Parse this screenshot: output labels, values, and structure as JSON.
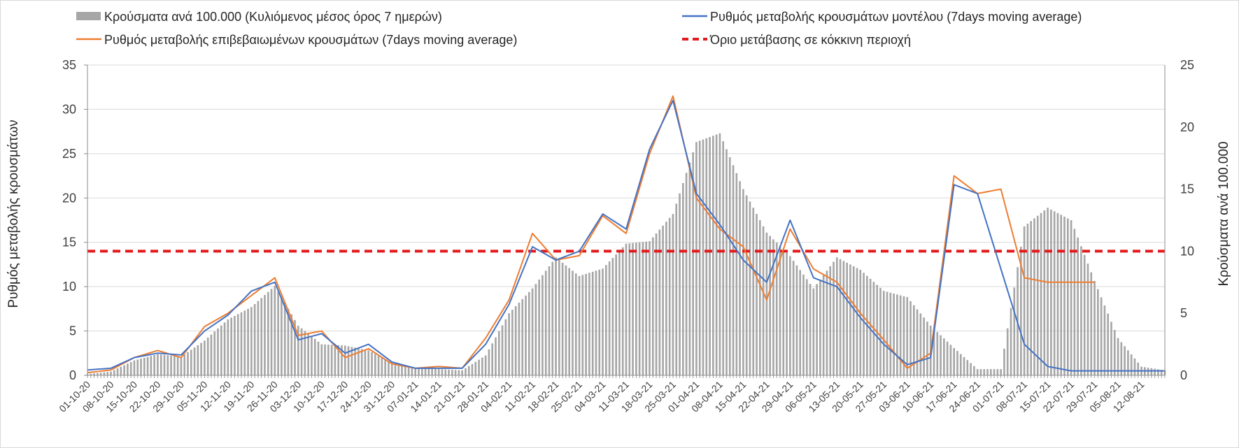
{
  "chart_data": {
    "type": "bar+line",
    "legend": {
      "bars_label": "Κρούσματα ανά 100.000 (Κυλιόμενος μέσος όρος 7 ημερών)",
      "model_label": "Ρυθμός μεταβολής κρουσμάτων μοντέλου (7days moving average)",
      "confirmed_label": "Ρυθμός μεταβολής επιβεβαιωμένων κρουσμάτων (7days moving average)",
      "threshold_label": "Όριο μετάβασης σε κόκκινη περιοχή"
    },
    "ylabel_left": "Ρυθμός μεταβολής κρουσμάτων",
    "ylabel_right": "Κρούσματα ανά 100.000",
    "ylim_left": [
      0,
      35
    ],
    "yticks_left": [
      "0",
      "5",
      "10",
      "15",
      "20",
      "25",
      "30",
      "35"
    ],
    "ylim_right": [
      0,
      25
    ],
    "yticks_right": [
      "0",
      "5",
      "10",
      "15",
      "20",
      "25"
    ],
    "x_start_date": "01-10-20",
    "day_count": 323,
    "x_tick_labels": [
      "01-10-20",
      "08-10-20",
      "15-10-20",
      "22-10-20",
      "29-10-20",
      "05-11-20",
      "12-11-20",
      "19-11-20",
      "26-11-20",
      "03-12-20",
      "10-12-20",
      "17-12-20",
      "24-12-20",
      "31-12-20",
      "07-01-21",
      "14-01-21",
      "21-01-21",
      "28-01-21",
      "04-02-21",
      "11-02-21",
      "18-02-21",
      "25-02-21",
      "04-03-21",
      "11-03-21",
      "18-03-21",
      "25-03-21",
      "01-04-21",
      "08-04-21",
      "15-04-21",
      "22-04-21",
      "29-04-21",
      "06-05-21",
      "13-05-21",
      "20-05-21",
      "27-05-21",
      "03-06-21",
      "10-06-21",
      "17-06-21",
      "24-06-21",
      "01-07-21",
      "08-07-21",
      "15-07-21",
      "22-07-21",
      "29-07-21",
      "05-08-21",
      "12-08-21"
    ],
    "threshold_left_value": 14,
    "grid": true,
    "legend_position": "top",
    "bars_series": {
      "name": "Κρούσματα ανά 100.000 (Κυλιόμενος μέσος όρος 7 ημερών)",
      "color": "#a6a6a6",
      "day_index": [
        0,
        7,
        14,
        21,
        28,
        35,
        42,
        49,
        56,
        63,
        70,
        77,
        84,
        91,
        98,
        105,
        112,
        119,
        126,
        133,
        140,
        147,
        154,
        161,
        168,
        175,
        182,
        189,
        196,
        203,
        210,
        217,
        224,
        231,
        238,
        245,
        252,
        259,
        266,
        273,
        280,
        287,
        294,
        301,
        308,
        315,
        322
      ],
      "values": [
        0.1,
        0.3,
        1.2,
        1.7,
        1.5,
        2.8,
        4.5,
        5.5,
        7.2,
        4.0,
        2.5,
        2.4,
        2.0,
        1.0,
        0.6,
        0.5,
        0.4,
        1.6,
        5.0,
        7.0,
        9.5,
        8.0,
        8.6,
        10.6,
        10.8,
        13.0,
        18.8,
        19.5,
        15.0,
        11.5,
        9.6,
        7.0,
        9.5,
        8.5,
        6.8,
        6.3,
        4.0,
        2.2,
        0.5,
        0.5,
        12.0,
        13.5,
        12.5,
        7.6,
        3.0,
        0.7,
        0.4
      ]
    },
    "model_series": {
      "name": "Ρυθμός μεταβολής κρουσμάτων μοντέλου (7days moving average)",
      "color": "#4472c4",
      "day_index": [
        0,
        7,
        14,
        21,
        28,
        35,
        42,
        49,
        56,
        63,
        70,
        77,
        84,
        91,
        98,
        105,
        112,
        119,
        126,
        133,
        140,
        147,
        154,
        161,
        168,
        175,
        182,
        189,
        196,
        203,
        210,
        217,
        224,
        231,
        238,
        245,
        252,
        259,
        266,
        273,
        280,
        287,
        294,
        301,
        308,
        315,
        322
      ],
      "values": [
        0.6,
        0.8,
        2.0,
        2.5,
        2.3,
        5.0,
        6.8,
        9.5,
        10.5,
        4.0,
        4.7,
        2.5,
        3.5,
        1.5,
        0.8,
        0.8,
        0.8,
        3.5,
        8.0,
        14.5,
        13.0,
        14.0,
        18.2,
        16.5,
        25.5,
        31.0,
        20.5,
        17.0,
        13.0,
        10.5,
        17.5,
        11.0,
        10.0,
        6.5,
        3.5,
        1.2,
        2.0,
        21.5,
        20.5,
        12.0,
        3.5,
        1.0,
        0.5,
        0.5,
        0.5,
        0.5,
        0.5
      ]
    },
    "confirmed_series": {
      "name": "Ρυθμός μεταβολής επιβεβαιωμένων κρουσμάτων (7days moving average)",
      "color": "#ed7d31",
      "day_index": [
        0,
        7,
        14,
        21,
        28,
        35,
        42,
        49,
        56,
        63,
        70,
        77,
        84,
        91,
        98,
        105,
        112,
        119,
        126,
        133,
        140,
        147,
        154,
        161,
        168,
        175,
        182,
        189,
        196,
        203,
        210,
        217,
        224,
        231,
        238,
        245,
        252,
        259,
        266,
        273,
        280,
        287,
        294,
        301
      ],
      "values": [
        0.3,
        0.6,
        2.0,
        2.8,
        2.0,
        5.5,
        7.0,
        9.0,
        11.0,
        4.5,
        5.0,
        2.0,
        3.0,
        1.3,
        0.8,
        1.0,
        0.8,
        4.2,
        8.5,
        16.0,
        13.0,
        13.5,
        18.0,
        16.0,
        25.0,
        31.5,
        20.0,
        16.5,
        14.5,
        8.5,
        16.5,
        12.0,
        10.5,
        7.0,
        4.0,
        0.8,
        2.5,
        22.5,
        20.5,
        21.0,
        11.0,
        10.5,
        10.5,
        10.5
      ]
    }
  }
}
